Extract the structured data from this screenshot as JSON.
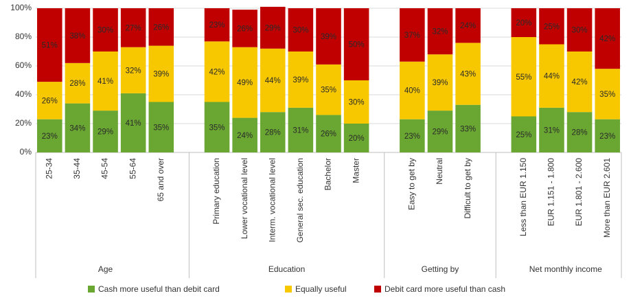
{
  "chart_data": {
    "type": "stacked_bar",
    "groups": [
      {
        "label": "Age",
        "categories": [
          "25-34",
          "35-44",
          "45-54",
          "55-64",
          "65 and over"
        ]
      },
      {
        "label": "Education",
        "categories": [
          "Primary education",
          "Lower vocational level",
          "Interm. vocational level",
          "General sec. education",
          "Bachelor",
          "Master"
        ]
      },
      {
        "label": "Getting by",
        "categories": [
          "Easy to get by",
          "Neutral",
          "Difficult to get by"
        ]
      },
      {
        "label": "Net monthly income",
        "categories": [
          "Less than EUR 1.150",
          "EUR 1.151 - 1.800",
          "EUR 1.801 - 2.600",
          "More than EUR 2.601"
        ]
      }
    ],
    "series": [
      {
        "name": "Cash more useful than debit card",
        "color": "#6aa632",
        "values": [
          23,
          34,
          29,
          41,
          35,
          35,
          24,
          28,
          31,
          26,
          20,
          23,
          29,
          33,
          25,
          31,
          28,
          23
        ],
        "value_labels": [
          "23%",
          "34%",
          "29%",
          "41%",
          "35%",
          "35%",
          "24%",
          "28%",
          "31%",
          "26%",
          "20%",
          "23%",
          "29%",
          "33%",
          "25%",
          "31%",
          "28%",
          "23%"
        ]
      },
      {
        "name": "Equally useful",
        "color": "#f7c800",
        "values": [
          26,
          28,
          41,
          32,
          39,
          42,
          49,
          44,
          39,
          35,
          30,
          40,
          39,
          43,
          55,
          44,
          42,
          35
        ],
        "value_labels": [
          "26%",
          "28%",
          "41%",
          "32%",
          "39%",
          "42%",
          "49%",
          "44%",
          "39%",
          "35%",
          "30%",
          "40%",
          "39%",
          "43%",
          "55%",
          "44%",
          "42%",
          "35%"
        ]
      },
      {
        "name": "Debit card more useful than cash",
        "color": "#c00000",
        "values": [
          51,
          38,
          30,
          27,
          26,
          23,
          26,
          29,
          30,
          39,
          50,
          37,
          32,
          24,
          20,
          25,
          30,
          42
        ],
        "value_labels": [
          "51%",
          "38%",
          "30%",
          "27%",
          "26%",
          "23%",
          "26%",
          "29%",
          "30%",
          "39%",
          "50%",
          "37%",
          "32%",
          "24%",
          "20%",
          "25%",
          "30%",
          "42%"
        ]
      }
    ],
    "ylim": [
      0,
      100
    ],
    "yticks": [
      {
        "value": 0,
        "label": "0%"
      },
      {
        "value": 20,
        "label": "20%"
      },
      {
        "value": 40,
        "label": "40%"
      },
      {
        "value": 60,
        "label": "60%"
      },
      {
        "value": 80,
        "label": "80%"
      },
      {
        "value": 100,
        "label": "100%"
      }
    ],
    "grid": true,
    "legend": "bottom"
  }
}
